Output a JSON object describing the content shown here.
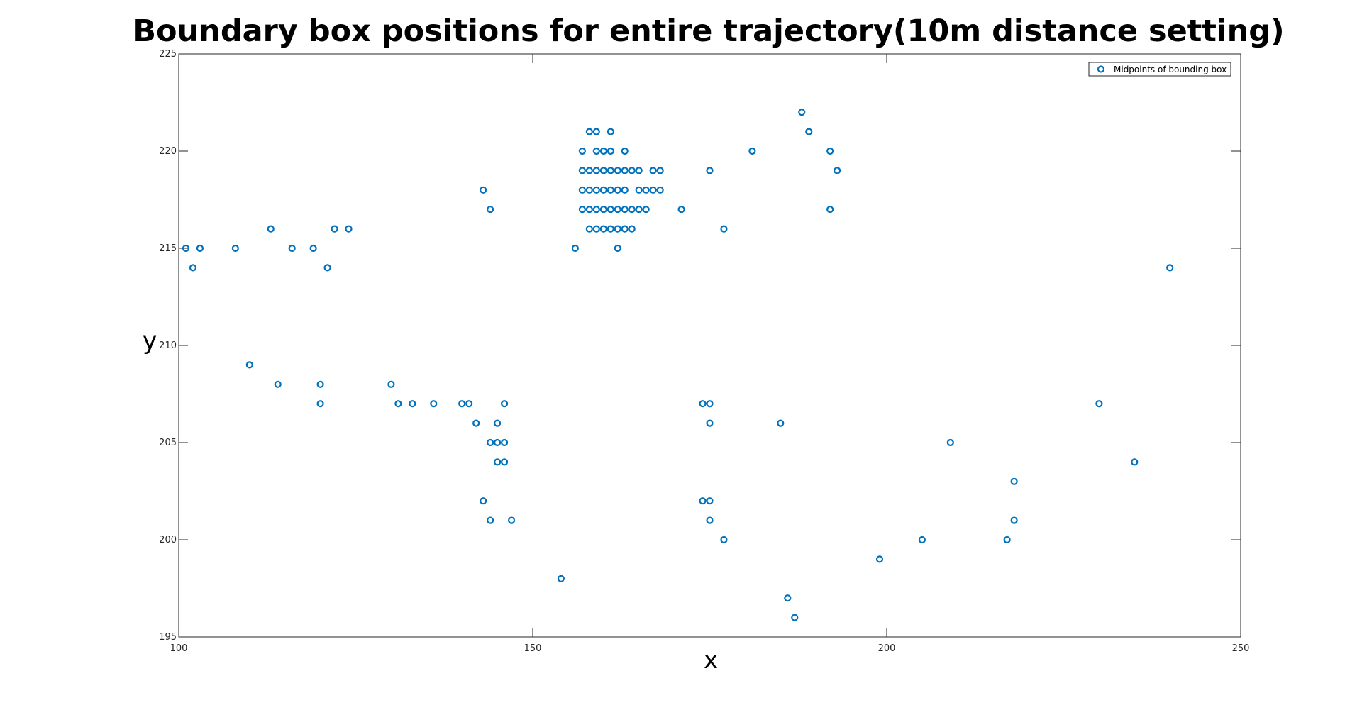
{
  "chart_data": {
    "type": "scatter",
    "title": "Boundary box positions for entire trajectory(10m distance setting)",
    "xlabel": "x",
    "ylabel": "y",
    "xlim": [
      100,
      250
    ],
    "ylim": [
      195,
      225
    ],
    "xticks": [
      "100",
      "150",
      "200",
      "250"
    ],
    "yticks": [
      "195",
      "200",
      "205",
      "210",
      "215",
      "220",
      "225"
    ],
    "grid": false,
    "legend_position": "top-right",
    "marker_color": "#0072BD",
    "series": [
      {
        "name": "Midpoints of bounding box",
        "points": [
          [
            101,
            215
          ],
          [
            102,
            214
          ],
          [
            103,
            215
          ],
          [
            108,
            215
          ],
          [
            110,
            209
          ],
          [
            113,
            216
          ],
          [
            114,
            208
          ],
          [
            116,
            215
          ],
          [
            119,
            215
          ],
          [
            120,
            208
          ],
          [
            120,
            207
          ],
          [
            121,
            214
          ],
          [
            122,
            216
          ],
          [
            124,
            216
          ],
          [
            130,
            208
          ],
          [
            131,
            207
          ],
          [
            133,
            207
          ],
          [
            136,
            207
          ],
          [
            140,
            207
          ],
          [
            141,
            207
          ],
          [
            142,
            206
          ],
          [
            143,
            218
          ],
          [
            143,
            202
          ],
          [
            144,
            217
          ],
          [
            144,
            205
          ],
          [
            144,
            201
          ],
          [
            145,
            206
          ],
          [
            145,
            205
          ],
          [
            145,
            204
          ],
          [
            146,
            207
          ],
          [
            146,
            205
          ],
          [
            146,
            204
          ],
          [
            147,
            201
          ],
          [
            154,
            198
          ],
          [
            156,
            215
          ],
          [
            157,
            220
          ],
          [
            157,
            219
          ],
          [
            157,
            218
          ],
          [
            157,
            217
          ],
          [
            158,
            221
          ],
          [
            158,
            219
          ],
          [
            158,
            218
          ],
          [
            158,
            217
          ],
          [
            158,
            216
          ],
          [
            159,
            221
          ],
          [
            159,
            220
          ],
          [
            159,
            219
          ],
          [
            159,
            218
          ],
          [
            159,
            217
          ],
          [
            159,
            216
          ],
          [
            160,
            220
          ],
          [
            160,
            219
          ],
          [
            160,
            218
          ],
          [
            160,
            217
          ],
          [
            160,
            216
          ],
          [
            161,
            221
          ],
          [
            161,
            220
          ],
          [
            161,
            219
          ],
          [
            161,
            218
          ],
          [
            161,
            217
          ],
          [
            161,
            216
          ],
          [
            162,
            219
          ],
          [
            162,
            218
          ],
          [
            162,
            217
          ],
          [
            162,
            216
          ],
          [
            162,
            215
          ],
          [
            163,
            220
          ],
          [
            163,
            219
          ],
          [
            163,
            218
          ],
          [
            163,
            217
          ],
          [
            163,
            216
          ],
          [
            164,
            219
          ],
          [
            164,
            217
          ],
          [
            164,
            216
          ],
          [
            165,
            219
          ],
          [
            165,
            218
          ],
          [
            165,
            217
          ],
          [
            166,
            218
          ],
          [
            166,
            217
          ],
          [
            167,
            219
          ],
          [
            167,
            218
          ],
          [
            168,
            219
          ],
          [
            168,
            218
          ],
          [
            171,
            217
          ],
          [
            174,
            207
          ],
          [
            174,
            202
          ],
          [
            175,
            219
          ],
          [
            175,
            207
          ],
          [
            175,
            206
          ],
          [
            175,
            202
          ],
          [
            175,
            201
          ],
          [
            177,
            216
          ],
          [
            177,
            200
          ],
          [
            181,
            220
          ],
          [
            185,
            206
          ],
          [
            186,
            197
          ],
          [
            187,
            196
          ],
          [
            188,
            222
          ],
          [
            189,
            221
          ],
          [
            192,
            220
          ],
          [
            192,
            217
          ],
          [
            193,
            219
          ],
          [
            199,
            199
          ],
          [
            205,
            200
          ],
          [
            209,
            205
          ],
          [
            217,
            200
          ],
          [
            218,
            203
          ],
          [
            218,
            201
          ],
          [
            230,
            207
          ],
          [
            235,
            204
          ],
          [
            240,
            214
          ]
        ]
      }
    ]
  }
}
